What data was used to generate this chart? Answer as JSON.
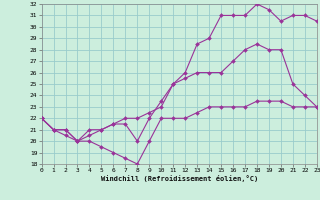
{
  "bg_color": "#cceedd",
  "grid_color": "#99cccc",
  "line_color": "#993399",
  "xlabel": "Windchill (Refroidissement éolien,°C)",
  "xlim": [
    0,
    23
  ],
  "ylim": [
    18,
    32
  ],
  "xticks": [
    0,
    1,
    2,
    3,
    4,
    5,
    6,
    7,
    8,
    9,
    10,
    11,
    12,
    13,
    14,
    15,
    16,
    17,
    18,
    19,
    20,
    21,
    22,
    23
  ],
  "yticks": [
    18,
    19,
    20,
    21,
    22,
    23,
    24,
    25,
    26,
    27,
    28,
    29,
    30,
    31,
    32
  ],
  "line1": {
    "x": [
      0,
      1,
      2,
      3,
      4,
      5,
      6,
      7,
      8,
      9,
      10,
      11,
      12,
      13,
      14,
      15,
      16,
      17,
      18,
      19,
      20,
      21,
      22,
      23
    ],
    "y": [
      22,
      21,
      21,
      20,
      20,
      19.5,
      19,
      18.5,
      18,
      20,
      22,
      22,
      22,
      22.5,
      23,
      23,
      23,
      23,
      23.5,
      23.5,
      23.5,
      23,
      23,
      23
    ]
  },
  "line2": {
    "x": [
      0,
      1,
      2,
      3,
      4,
      5,
      6,
      7,
      8,
      9,
      10,
      11,
      12,
      13,
      14,
      15,
      16,
      17,
      18,
      19,
      20,
      21,
      22,
      23
    ],
    "y": [
      22,
      21,
      20.5,
      20,
      21,
      21,
      21.5,
      21.5,
      20,
      22,
      23.5,
      25,
      25.5,
      26,
      26,
      26,
      27,
      28,
      28.5,
      28,
      28,
      25,
      24,
      23
    ]
  },
  "line3": {
    "x": [
      0,
      1,
      2,
      3,
      4,
      5,
      6,
      7,
      8,
      9,
      10,
      11,
      12,
      13,
      14,
      15,
      16,
      17,
      18,
      19,
      20,
      21,
      22,
      23
    ],
    "y": [
      22,
      21,
      21,
      20,
      20.5,
      21,
      21.5,
      22,
      22,
      22.5,
      23,
      25,
      26,
      28.5,
      29,
      31,
      31,
      31,
      32,
      31.5,
      30.5,
      31,
      31,
      30.5
    ]
  }
}
